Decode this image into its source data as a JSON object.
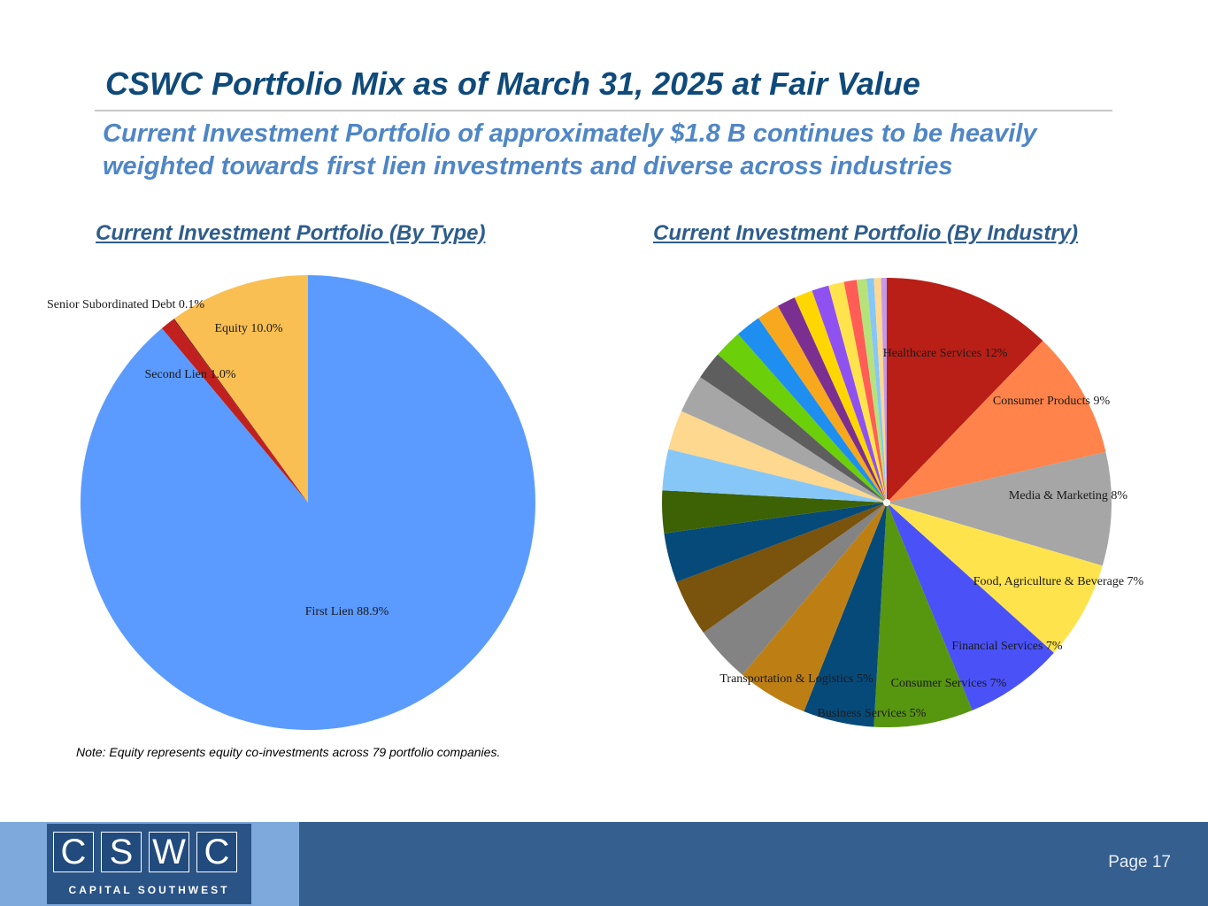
{
  "title": "CSWC Portfolio Mix as of March 31, 2025 at Fair Value",
  "subtitle": "Current Investment Portfolio of approximately $1.8 B continues to be heavily weighted towards first lien investments and diverse across industries",
  "note": "Note: Equity represents equity co-investments across 79 portfolio companies.",
  "footer": {
    "logo_letters": [
      "C",
      "S",
      "W",
      "C"
    ],
    "logo_tagline": "CAPITAL SOUTHWEST",
    "page": "Page 17"
  },
  "chart_data": [
    {
      "type": "pie",
      "title": "Current Investment Portfolio (By Type)",
      "slices": [
        {
          "label": "First Lien 88.9%",
          "value": 88.9,
          "color": "#5b9bff"
        },
        {
          "label": "Second Lien 1.0%",
          "value": 1.0,
          "color": "#c0201e"
        },
        {
          "label": "Senior Subordinated Debt 0.1%",
          "value": 0.1,
          "color": "#8b1a1a"
        },
        {
          "label": "Equity 10.0%",
          "value": 10.0,
          "color": "#f9bf52"
        }
      ]
    },
    {
      "type": "pie",
      "title": "Current Investment Portfolio (By Industry)",
      "slices": [
        {
          "label": "Healthcare Services 12%",
          "value": 12,
          "color": "#b91f16"
        },
        {
          "label": "Consumer Products 9%",
          "value": 9,
          "color": "#ff834a"
        },
        {
          "label": "Media & Marketing 8%",
          "value": 8,
          "color": "#a6a6a6"
        },
        {
          "label": "Food, Agriculture & Beverage 7%",
          "value": 7,
          "color": "#ffe34d"
        },
        {
          "label": "Financial Services 7%",
          "value": 7,
          "color": "#4a52f7"
        },
        {
          "label": "Consumer Services 7%",
          "value": 7,
          "color": "#57960f"
        },
        {
          "label": "Business Services 5%",
          "value": 5,
          "color": "#064a7a"
        },
        {
          "label": "Transportation & Logistics 5%",
          "value": 5,
          "color": "#bd7f14"
        },
        {
          "label": "",
          "value": 4,
          "color": "#838383"
        },
        {
          "label": "",
          "value": 4,
          "color": "#7a530c"
        },
        {
          "label": "",
          "value": 3.5,
          "color": "#064a7a"
        },
        {
          "label": "",
          "value": 3,
          "color": "#3c6205"
        },
        {
          "label": "",
          "value": 2.9,
          "color": "#86c7f8"
        },
        {
          "label": "",
          "value": 2.8,
          "color": "#fdd88e"
        },
        {
          "label": "",
          "value": 2.7,
          "color": "#a6a6a6"
        },
        {
          "label": "",
          "value": 2,
          "color": "#5e5e5e"
        },
        {
          "label": "",
          "value": 2,
          "color": "#6bcf0a"
        },
        {
          "label": "",
          "value": 1.8,
          "color": "#1e8ff0"
        },
        {
          "label": "",
          "value": 1.6,
          "color": "#f8a81c"
        },
        {
          "label": "",
          "value": 1.3,
          "color": "#7b2f91"
        },
        {
          "label": "",
          "value": 1.3,
          "color": "#ffd700"
        },
        {
          "label": "",
          "value": 1.2,
          "color": "#8f52f0"
        },
        {
          "label": "",
          "value": 1.1,
          "color": "#ffe34d"
        },
        {
          "label": "",
          "value": 0.9,
          "color": "#ff5d55"
        },
        {
          "label": "",
          "value": 0.7,
          "color": "#b5e37a"
        },
        {
          "label": "",
          "value": 0.5,
          "color": "#86c7f8"
        },
        {
          "label": "",
          "value": 0.5,
          "color": "#fdd88e"
        },
        {
          "label": "",
          "value": 0.4,
          "color": "#c49ae8"
        }
      ]
    }
  ]
}
